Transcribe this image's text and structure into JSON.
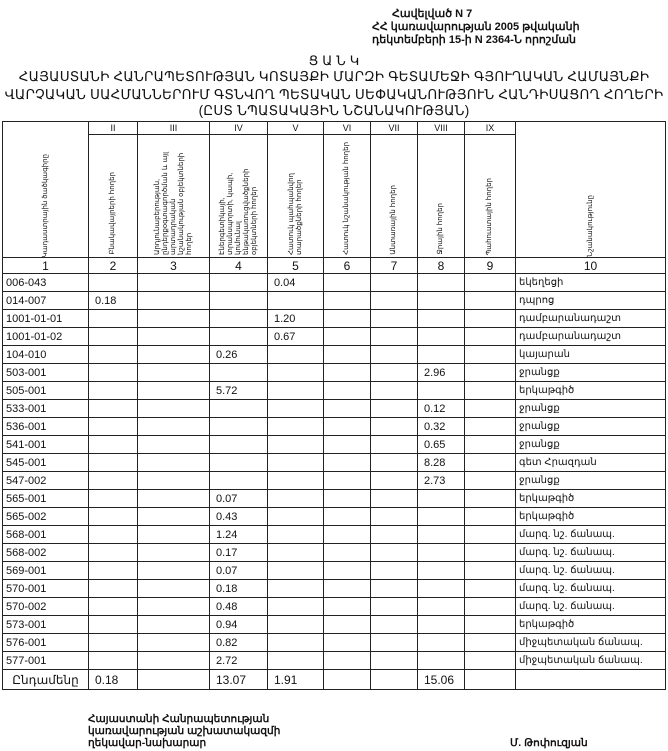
{
  "annex": {
    "line1": "Հավելված N 7",
    "line2": "ՀՀ կառավարության 2005 թվականի",
    "line3": "դեկտեմբերի 15-ի N 2364-Ն որոշման"
  },
  "title": {
    "heading": "Ց Ա Ն Կ",
    "line1": "ՀԱՅԱՍՏԱՆԻ ՀԱՆՐԱՊԵՏՈՒԹՅԱՆ ԿՈՏԱՅՔԻ ՄԱՐԶԻ ԳԵՏԱՄԵՋԻ ԳՅՈՒՂԱԿԱՆ ՀԱՄԱՅՆՔԻ",
    "line2": "ՎԱՐՉԱԿԱՆ ՍԱՀՄԱՆՆԵՐՈՒՄ ԳՏՆՎՈՂ ՊԵՏԱԿԱՆ ՍԵՓԱԿԱՆՈՒԹՅՈՒՆ ՀԱՆԴԻՍԱՑՈՂ ՀՈՂԵՐԻ",
    "line3": "(ԸՍՏ ՆՊԱՏԱԿԱՅԻՆ ՆՇԱՆԱԿՈՒԹՅԱՆ)"
  },
  "table": {
    "roman": [
      "",
      "II",
      "III",
      "IV",
      "V",
      "VI",
      "VII",
      "VIII",
      "IX",
      ""
    ],
    "headers": [
      "Կադաստրային ծածկագիրը",
      "Բնակավայրերի հողեր",
      "Արդյունաբերության, ընդերքօգտագործման և այլ արտադրական նշանակության օբյեկտների հողեր",
      "Էներգետիկայի, տրանսպորտի, կապի, կոմունալ ենթակառուցվածքների օբյեկտների հողեր",
      "Հատուկ պահպանվող տարածքների հողեր",
      "Հատուկ նշանակության հողեր",
      "Անտառային հողեր",
      "Ջրային հողեր",
      "Պահուստային հողեր",
      "Նշանակությունը"
    ],
    "numbers": [
      "1",
      "2",
      "3",
      "4",
      "5",
      "6",
      "7",
      "8",
      "9",
      "10"
    ],
    "rows": [
      [
        "006-043",
        "",
        "",
        "",
        "0.04",
        "",
        "",
        "",
        "",
        "եկեղեցի"
      ],
      [
        "014-007",
        "0.18",
        "",
        "",
        "",
        "",
        "",
        "",
        "",
        "դպրոց"
      ],
      [
        "1001-01-01",
        "",
        "",
        "",
        "1.20",
        "",
        "",
        "",
        "",
        "դամբարանադաշտ"
      ],
      [
        "1001-01-02",
        "",
        "",
        "",
        "0.67",
        "",
        "",
        "",
        "",
        "դամբարանադաշտ"
      ],
      [
        "104-010",
        "",
        "",
        "0.26",
        "",
        "",
        "",
        "",
        "",
        "կայարան"
      ],
      [
        "503-001",
        "",
        "",
        "",
        "",
        "",
        "",
        "2.96",
        "",
        "ջրանցք"
      ],
      [
        "505-001",
        "",
        "",
        "5.72",
        "",
        "",
        "",
        "",
        "",
        "երկաթգիծ"
      ],
      [
        "533-001",
        "",
        "",
        "",
        "",
        "",
        "",
        "0.12",
        "",
        "ջրանցք"
      ],
      [
        "536-001",
        "",
        "",
        "",
        "",
        "",
        "",
        "0.32",
        "",
        "ջրանցք"
      ],
      [
        "541-001",
        "",
        "",
        "",
        "",
        "",
        "",
        "0.65",
        "",
        "ջրանցք"
      ],
      [
        "545-001",
        "",
        "",
        "",
        "",
        "",
        "",
        "8.28",
        "",
        "գետ Հրազդան"
      ],
      [
        "547-002",
        "",
        "",
        "",
        "",
        "",
        "",
        "2.73",
        "",
        "ջրանցք"
      ],
      [
        "565-001",
        "",
        "",
        "0.07",
        "",
        "",
        "",
        "",
        "",
        "երկաթգիծ"
      ],
      [
        "565-002",
        "",
        "",
        "0.43",
        "",
        "",
        "",
        "",
        "",
        "երկաթգիծ"
      ],
      [
        "568-001",
        "",
        "",
        "1.24",
        "",
        "",
        "",
        "",
        "",
        "մարզ. նշ. ճանապ."
      ],
      [
        "568-002",
        "",
        "",
        "0.17",
        "",
        "",
        "",
        "",
        "",
        "մարզ. նշ. ճանապ."
      ],
      [
        "569-001",
        "",
        "",
        "0.07",
        "",
        "",
        "",
        "",
        "",
        "մարզ. նշ. ճանապ."
      ],
      [
        "570-001",
        "",
        "",
        "0.18",
        "",
        "",
        "",
        "",
        "",
        "մարզ. նշ. ճանապ."
      ],
      [
        "570-002",
        "",
        "",
        "0.48",
        "",
        "",
        "",
        "",
        "",
        "մարզ. նշ. ճանապ."
      ],
      [
        "573-001",
        "",
        "",
        "0.94",
        "",
        "",
        "",
        "",
        "",
        "երկաթգիծ"
      ],
      [
        "576-001",
        "",
        "",
        "0.82",
        "",
        "",
        "",
        "",
        "",
        "միջպետական ճանապ."
      ],
      [
        "577-001",
        "",
        "",
        "2.72",
        "",
        "",
        "",
        "",
        "",
        "միջպետական ճանապ."
      ]
    ],
    "total": [
      "Ընդամենը",
      "0.18",
      "",
      "13.07",
      "1.91",
      "",
      "",
      "15.06",
      "",
      ""
    ]
  },
  "footer": {
    "line1": "Հայաստանի Հանրապետության",
    "line2": "կառավարության աշխատակազմի",
    "line3": "ղեկավար-նախարար",
    "signatory": "Մ. Թոփուզյան"
  }
}
